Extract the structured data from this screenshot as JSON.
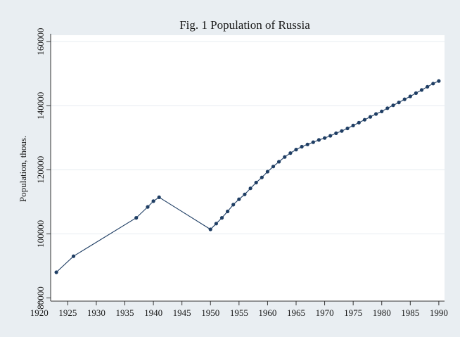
{
  "chart_data": {
    "type": "line",
    "title": "Fig. 1  Population of Russia",
    "ylabel": "Population, thous.",
    "xlabel": "",
    "xlim": [
      1922,
      1991
    ],
    "ylim": [
      79000,
      162000
    ],
    "x_ticks": [
      1920,
      1925,
      1930,
      1935,
      1940,
      1945,
      1950,
      1955,
      1960,
      1965,
      1970,
      1975,
      1980,
      1985,
      1990
    ],
    "y_ticks": [
      80000,
      100000,
      120000,
      140000,
      160000
    ],
    "grid": true,
    "legend": "none",
    "colors": {
      "background": "#e9eef2",
      "plot_area": "#ffffff",
      "line": "#1f3e64",
      "marker": "#1f3e64",
      "grid": "#e6ecf0",
      "title": "#1f3e64"
    },
    "series": [
      {
        "name": "",
        "x": [
          1923,
          1926,
          1937,
          1939,
          1940,
          1941,
          1950,
          1951,
          1952,
          1953,
          1954,
          1955,
          1956,
          1957,
          1958,
          1959,
          1960,
          1961,
          1962,
          1963,
          1964,
          1965,
          1966,
          1967,
          1968,
          1969,
          1970,
          1971,
          1972,
          1973,
          1974,
          1975,
          1976,
          1977,
          1978,
          1979,
          1980,
          1981,
          1982,
          1983,
          1984,
          1985,
          1986,
          1987,
          1988,
          1989,
          1990
        ],
        "y": [
          88000,
          93000,
          105000,
          108400,
          110200,
          111400,
          101400,
          103200,
          105000,
          107000,
          109100,
          110800,
          112300,
          114200,
          116000,
          117600,
          119400,
          121000,
          122500,
          124000,
          125200,
          126300,
          127200,
          127900,
          128600,
          129300,
          129900,
          130600,
          131400,
          132100,
          132900,
          133800,
          134700,
          135600,
          136500,
          137400,
          138200,
          139200,
          140100,
          141000,
          142000,
          142900,
          143900,
          144900,
          145900,
          146900,
          147700
        ]
      }
    ]
  }
}
